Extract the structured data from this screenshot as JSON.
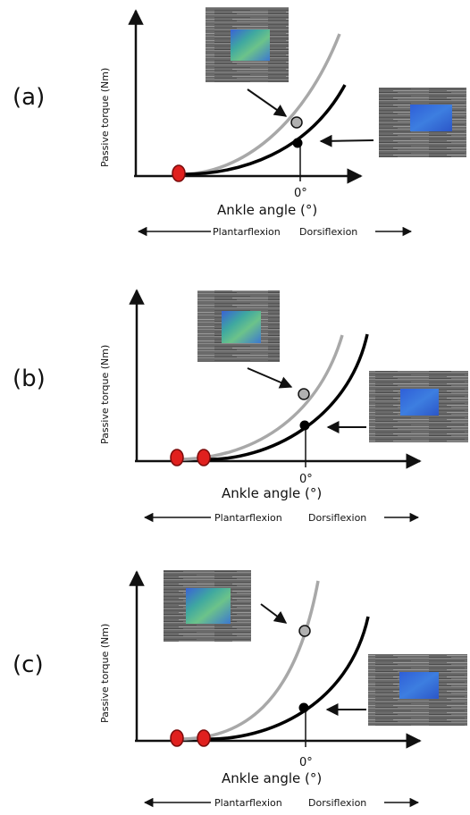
{
  "panels": [
    {
      "label": "(a)",
      "y_axis_label": "Passive torque (Nm)",
      "x_axis_label": "Ankle angle (°)",
      "zero_tick": "0°",
      "plantarflexion": "Plantarflexion",
      "dorsiflexion": "Dorsiflexion"
    },
    {
      "label": "(b)",
      "y_axis_label": "Passive torque (Nm)",
      "x_axis_label": "Ankle angle (°)",
      "zero_tick": "0°",
      "plantarflexion": "Plantarflexion",
      "dorsiflexion": "Dorsiflexion"
    },
    {
      "label": "(c)",
      "y_axis_label": "Passive torque (Nm)",
      "x_axis_label": "Ankle angle (°)",
      "zero_tick": "0°",
      "plantarflexion": "Plantarflexion",
      "dorsiflexion": "Dorsiflexion"
    }
  ],
  "colors": {
    "black_curve": "#000000",
    "grey_curve": "#a8a8a8",
    "slack_marker": "#e0201e",
    "ultrasound_bg": "#6e6e6e",
    "elastography_blue": "#3b6fd8",
    "elastography_green": "#4fb08a"
  }
}
